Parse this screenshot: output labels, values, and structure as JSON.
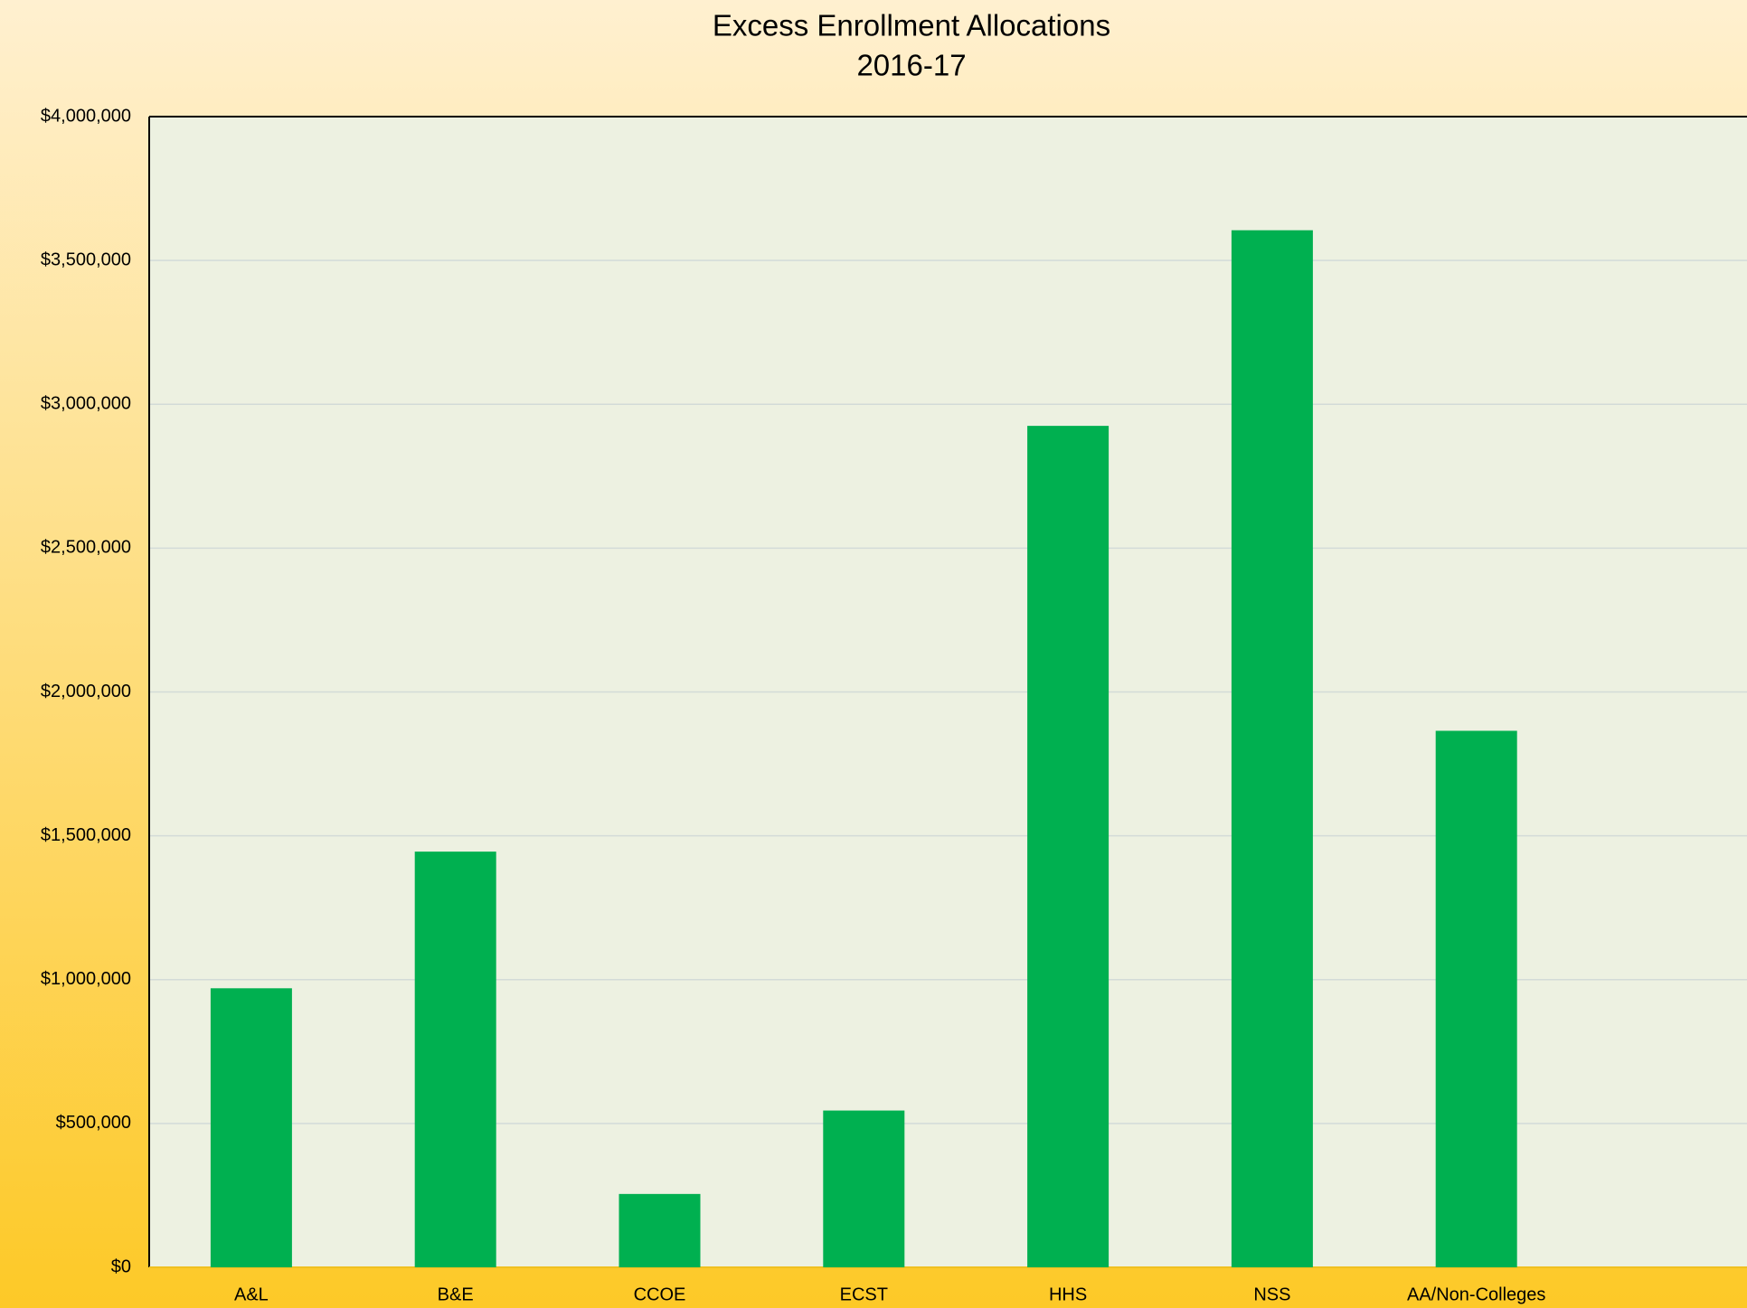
{
  "chart_data": {
    "type": "bar",
    "title": "Excess Enrollment Allocations",
    "subtitle": "2016-17",
    "categories": [
      "A&L",
      "B&E",
      "CCOE",
      "ECST",
      "HHS",
      "NSS",
      "AA/Non-Colleges"
    ],
    "values": [
      970000,
      1445000,
      255000,
      545000,
      2925000,
      3605000,
      1865000
    ],
    "color": "#00b050",
    "ylim": [
      0,
      4000000
    ],
    "yticks": [
      {
        "value": 0,
        "label": "$0"
      },
      {
        "value": 500000,
        "label": "$500,000"
      },
      {
        "value": 1000000,
        "label": "$1,000,000"
      },
      {
        "value": 1500000,
        "label": "$1,500,000"
      },
      {
        "value": 2000000,
        "label": "$2,000,000"
      },
      {
        "value": 2500000,
        "label": "$2,500,000"
      },
      {
        "value": 3000000,
        "label": "$3,000,000"
      },
      {
        "value": 3500000,
        "label": "$3,500,000"
      },
      {
        "value": 4000000,
        "label": "$4,000,000"
      }
    ],
    "grid": true
  }
}
